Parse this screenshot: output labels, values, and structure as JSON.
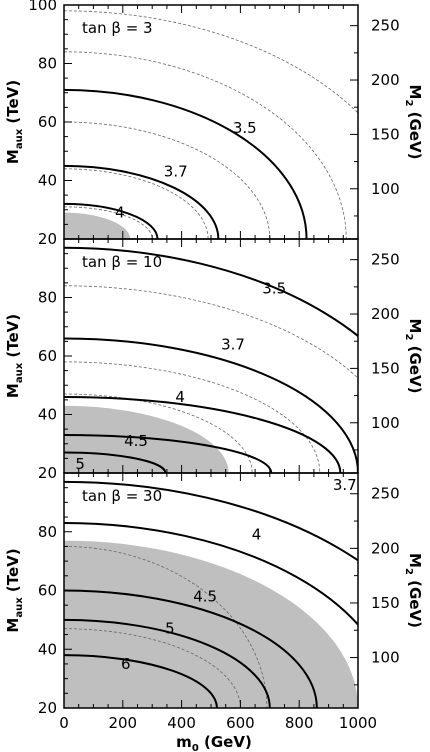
{
  "chart_data": {
    "type": "line",
    "x": {
      "label": "m0 (GeV)",
      "label_main": "m",
      "label_sub": "0",
      "label_unit": " (GeV)",
      "range": [
        0,
        1000
      ],
      "ticks": [
        "0",
        "200",
        "400",
        "600",
        "800",
        "1000"
      ]
    },
    "y_left": {
      "label": "Maux (TeV)",
      "label_main": "M",
      "label_sub": "aux",
      "label_unit": " (TeV)",
      "range": [
        20,
        100
      ],
      "ticks": [
        "20",
        "40",
        "60",
        "80",
        "100"
      ]
    },
    "y_right": {
      "label": "M2 (GeV)",
      "label_main": "M",
      "label_sub": "2",
      "label_unit": " (GeV)",
      "tick_values": [
        100,
        150,
        200,
        250
      ],
      "minor_ticks": [
        75,
        125,
        175,
        225,
        275
      ]
    },
    "panels": [
      {
        "tag": "tan β = 3",
        "shaded_region": {
          "x_at_floor": 225,
          "y_at_axis": 29
        },
        "contours": [
          {
            "label": "3.5",
            "x_at_floor": 825,
            "y_at_axis": 71,
            "label_at": [
              615,
              58
            ]
          },
          {
            "label": "3.7",
            "x_at_floor": 525,
            "y_at_axis": 45,
            "label_at": [
              380,
              43
            ]
          },
          {
            "label": "4",
            "x_at_floor": 318,
            "y_at_axis": 32,
            "label_at": [
              190,
              29
            ]
          }
        ],
        "dashed_contours": [
          {
            "x_at_floor": 1200,
            "y_at_axis": 98
          },
          {
            "x_at_floor": 960,
            "y_at_axis": 84
          },
          {
            "x_at_floor": 700,
            "y_at_axis": 60
          },
          {
            "x_at_floor": 490,
            "y_at_axis": 44
          },
          {
            "x_at_floor": 300,
            "y_at_axis": 31
          }
        ]
      },
      {
        "tag": "tan β = 10",
        "shaded_region": {
          "x_at_floor": 560,
          "y_at_axis": 43
        },
        "contours": [
          {
            "label": "3.5",
            "x_at_floor": 1260,
            "y_at_axis": 97,
            "label_at": [
              715,
              83
            ]
          },
          {
            "label": "3.7",
            "x_at_floor": 1000,
            "y_at_axis": 66,
            "label_at": [
              575,
              64
            ]
          },
          {
            "label": "4",
            "x_at_floor": 940,
            "y_at_axis": 46,
            "label_at": [
              395,
              46
            ]
          },
          {
            "label": "4.5",
            "x_at_floor": 705,
            "y_at_axis": 33,
            "label_at": [
              245,
              31
            ]
          },
          {
            "label": "5",
            "x_at_floor": 345,
            "y_at_axis": 27,
            "label_at": [
              55,
              23
            ]
          }
        ],
        "dashed_contours": [
          {
            "x_at_floor": 1160,
            "y_at_axis": 84
          },
          {
            "x_at_floor": 870,
            "y_at_axis": 58
          },
          {
            "x_at_floor": 640,
            "y_at_axis": 47
          }
        ]
      },
      {
        "tag": "tan β = 30",
        "shaded_region": {
          "x_at_floor": 1000,
          "y_at_axis": 77
        },
        "contours": [
          {
            "label": "3.7",
            "x_at_floor": 1320,
            "y_at_axis": 97,
            "label_at": [
              955,
              96
            ]
          },
          {
            "label": "4",
            "x_at_floor": 1120,
            "y_at_axis": 83,
            "label_at": [
              655,
              79
            ]
          },
          {
            "label": "4.5",
            "x_at_floor": 860,
            "y_at_axis": 60,
            "label_at": [
              480,
              58
            ]
          },
          {
            "label": "5",
            "x_at_floor": 700,
            "y_at_axis": 50,
            "label_at": [
              360,
              47
            ]
          },
          {
            "label": "6",
            "x_at_floor": 520,
            "y_at_axis": 38,
            "label_at": [
              210,
              35
            ]
          }
        ],
        "dashed_contours": [
          {
            "x_at_floor": 690,
            "y_at_axis": 75
          },
          {
            "x_at_floor": 600,
            "y_at_axis": 47
          }
        ]
      }
    ],
    "grid": false,
    "colors": {
      "shaded": "#bfbfbf",
      "line": "#000000",
      "dashed": "#666666"
    }
  }
}
